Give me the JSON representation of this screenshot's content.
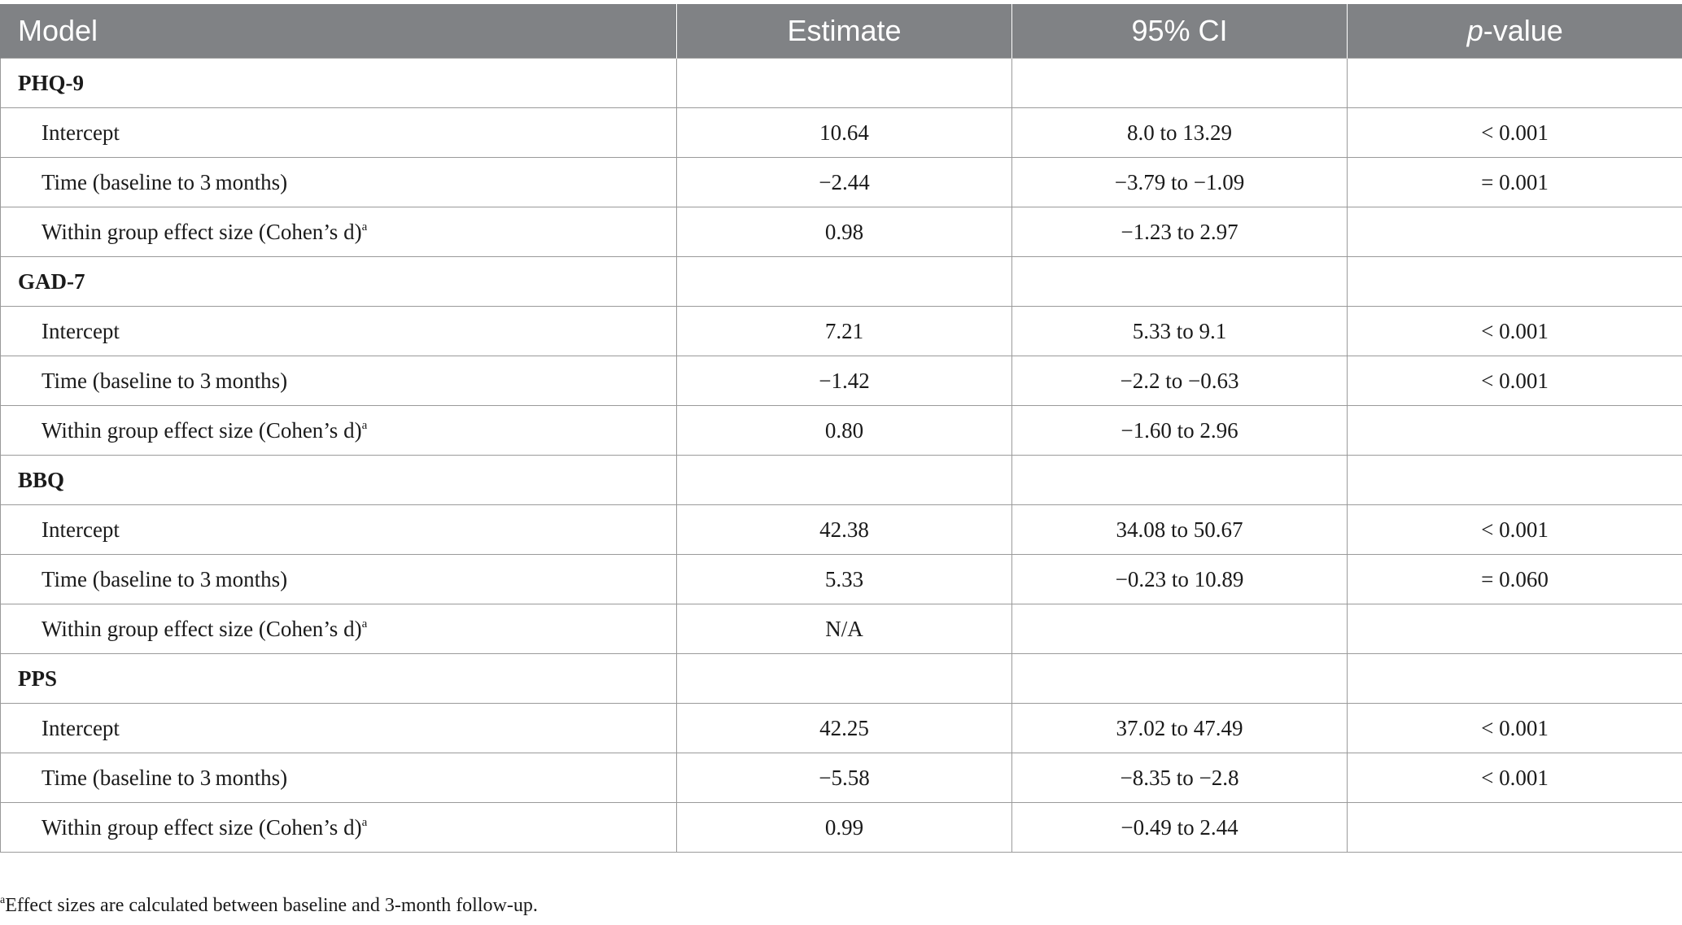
{
  "header": {
    "model": "Model",
    "estimate": "Estimate",
    "ci": "95% CI",
    "p_italic": "p",
    "p_rest": "-value"
  },
  "footnote_marker": "a",
  "groups": [
    {
      "name": "PHQ-9",
      "rows": [
        {
          "label": "Intercept",
          "estimate": "10.64",
          "ci": "8.0 to 13.29",
          "p": "< 0.001"
        },
        {
          "label": "Time (baseline to 3 months)",
          "estimate": "−2.44",
          "ci": "−3.79 to −1.09",
          "p": "= 0.001"
        },
        {
          "label": "Within group effect size (Cohen’s d)",
          "estimate": "0.98",
          "ci": "−1.23 to 2.97",
          "p": ""
        }
      ]
    },
    {
      "name": "GAD-7",
      "rows": [
        {
          "label": "Intercept",
          "estimate": "7.21",
          "ci": "5.33 to 9.1",
          "p": "< 0.001"
        },
        {
          "label": "Time (baseline to 3 months)",
          "estimate": "−1.42",
          "ci": "−2.2 to −0.63",
          "p": "< 0.001"
        },
        {
          "label": "Within group effect size (Cohen’s d)",
          "estimate": "0.80",
          "ci": "−1.60 to 2.96",
          "p": ""
        }
      ]
    },
    {
      "name": "BBQ",
      "rows": [
        {
          "label": "Intercept",
          "estimate": "42.38",
          "ci": "34.08 to 50.67",
          "p": "< 0.001"
        },
        {
          "label": "Time (baseline to 3 months)",
          "estimate": "5.33",
          "ci": "−0.23 to 10.89",
          "p": "= 0.060"
        },
        {
          "label": "Within group effect size (Cohen’s d)",
          "estimate": "N/A",
          "ci": "",
          "p": ""
        }
      ]
    },
    {
      "name": "PPS",
      "rows": [
        {
          "label": "Intercept",
          "estimate": "42.25",
          "ci": "37.02 to 47.49",
          "p": "< 0.001"
        },
        {
          "label": "Time (baseline to 3 months)",
          "estimate": "−5.58",
          "ci": "−8.35 to −2.8",
          "p": "< 0.001"
        },
        {
          "label": "Within group effect size (Cohen’s d)",
          "estimate": "0.99",
          "ci": "−0.49 to 2.44",
          "p": ""
        }
      ]
    }
  ],
  "footnote": {
    "marker": "a",
    "text": "Effect sizes are calculated between baseline and 3-month follow-up."
  }
}
